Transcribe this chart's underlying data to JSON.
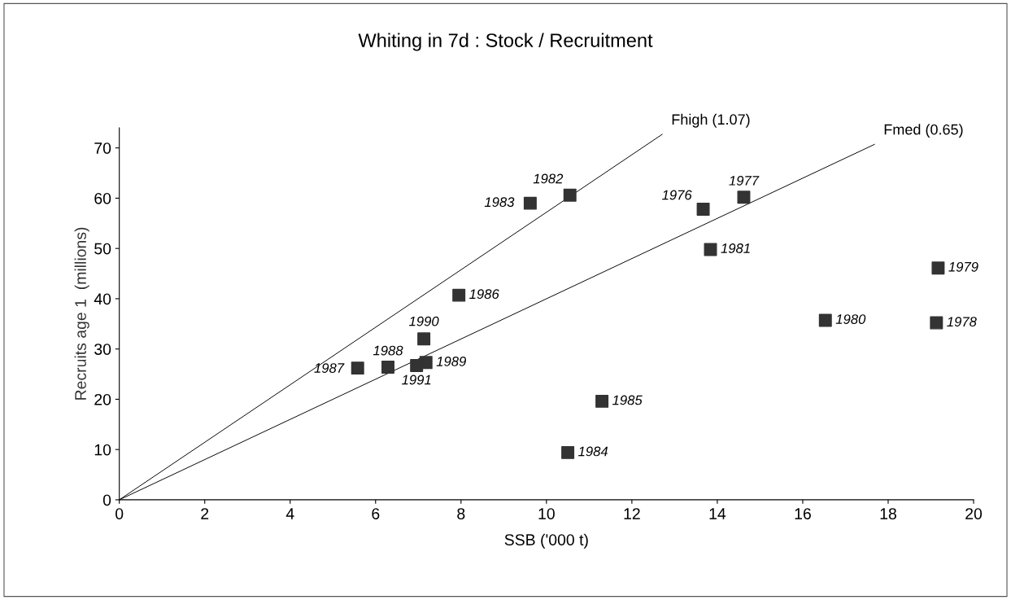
{
  "chart_data": {
    "type": "scatter",
    "title": "Whiting in 7d : Stock / Recruitment",
    "xlabel": "SSB ('000 t)",
    "ylabel": "Recruits age 1  (millions)",
    "xlim": [
      0,
      20
    ],
    "xticks": [
      0,
      2,
      4,
      6,
      8,
      10,
      12,
      14,
      16,
      18,
      20
    ],
    "ylim": [
      0,
      74
    ],
    "yticks": [
      0,
      10,
      20,
      30,
      40,
      50,
      60,
      70
    ],
    "grid": false,
    "legend": false,
    "series": [
      {
        "color": "#333333",
        "marker": "square",
        "x": [
          13.67,
          14.62,
          19.13,
          19.17,
          16.53,
          13.84,
          10.55,
          9.62,
          10.5,
          11.3,
          7.95,
          5.58,
          6.29,
          7.18,
          7.13,
          6.96
        ],
        "values": [
          57.8,
          60.2,
          35.2,
          46.1,
          35.7,
          49.8,
          60.6,
          59.0,
          9.4,
          19.6,
          40.7,
          26.2,
          26.4,
          27.3,
          32.0,
          26.7
        ]
      },
      {
        "type": "line",
        "marker": "none",
        "name": "Fhigh (1.07)",
        "color": "#000000",
        "x": [
          0,
          12.71
        ],
        "values": [
          0,
          72.7
        ]
      },
      {
        "type": "line",
        "marker": "none",
        "name": "Fmed (0.65)",
        "color": "#000000",
        "x": [
          0,
          17.68
        ],
        "values": [
          0,
          70.7
        ]
      }
    ],
    "annotations": [
      {
        "text": "1976",
        "x": 13.67,
        "y": 57.8
      },
      {
        "text": "1977",
        "x": 14.62,
        "y": 60.2
      },
      {
        "text": "1978",
        "x": 19.13,
        "y": 35.2
      },
      {
        "text": "1979",
        "x": 19.17,
        "y": 46.1
      },
      {
        "text": "1980",
        "x": 16.53,
        "y": 35.7
      },
      {
        "text": "1981",
        "x": 13.84,
        "y": 49.8
      },
      {
        "text": "1982",
        "x": 10.55,
        "y": 60.6
      },
      {
        "text": "1983",
        "x": 9.62,
        "y": 59.0
      },
      {
        "text": "1984",
        "x": 10.5,
        "y": 9.4
      },
      {
        "text": "1985",
        "x": 11.3,
        "y": 19.6
      },
      {
        "text": "1986",
        "x": 7.95,
        "y": 40.7
      },
      {
        "text": "1987",
        "x": 5.58,
        "y": 26.2
      },
      {
        "text": "1988",
        "x": 6.29,
        "y": 26.4
      },
      {
        "text": "1989",
        "x": 7.18,
        "y": 27.3
      },
      {
        "text": "1990",
        "x": 7.13,
        "y": 32.0
      },
      {
        "text": "1991",
        "x": 6.96,
        "y": 26.7
      }
    ]
  }
}
